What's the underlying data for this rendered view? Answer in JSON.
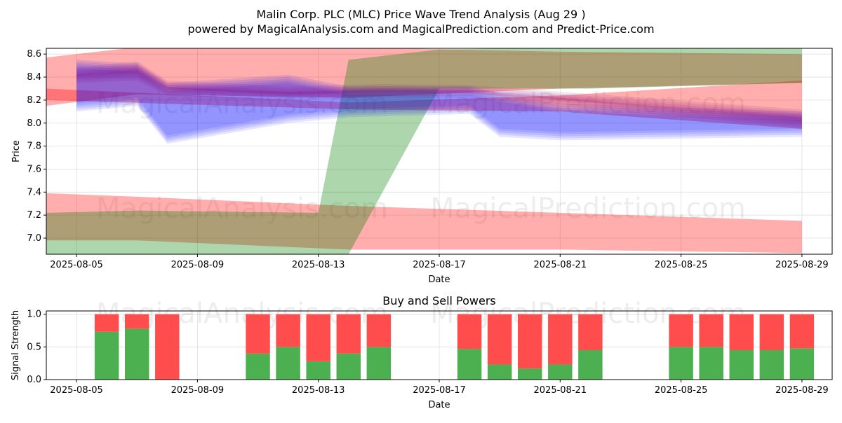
{
  "header": {
    "title": "Malin Corp. PLC (MLC) Price Wave Trend Analysis (Aug 29 )",
    "subtitle": "powered by MagicalAnalysis.com and MagicalPrediction.com and Predict-Price.com"
  },
  "watermarks": [
    "MagicalAnalysis.com",
    "MagicalPrediction.com"
  ],
  "colors": {
    "red_band": "#ff0000",
    "green_band": "#008000",
    "blue_band": "#0000ff",
    "purple_band": "#800080",
    "buy_bar": "#4caf50",
    "sell_bar": "#ff4c4c"
  },
  "chart_data": [
    {
      "type": "area",
      "title": "",
      "xlabel": "Date",
      "ylabel": "Price",
      "x_range": [
        "2025-08-04",
        "2025-08-30"
      ],
      "ylim": [
        6.86,
        8.65
      ],
      "y_ticks": [
        7.0,
        7.2,
        7.4,
        7.6,
        7.8,
        8.0,
        8.2,
        8.4,
        8.6
      ],
      "x_tick_labels": [
        "2025-08-05",
        "2025-08-09",
        "2025-08-13",
        "2025-08-17",
        "2025-08-21",
        "2025-08-25",
        "2025-08-29"
      ],
      "grid": true,
      "bands": [
        {
          "color": "red",
          "x": [
            "2025-08-04",
            "2025-08-07",
            "2025-08-14",
            "2025-08-21",
            "2025-08-29"
          ],
          "upper": [
            8.57,
            8.66,
            8.66,
            8.62,
            8.6
          ],
          "lower": [
            8.15,
            8.25,
            8.22,
            8.3,
            8.35
          ]
        },
        {
          "color": "red",
          "x": [
            "2025-08-29",
            "2025-08-21",
            "2025-08-14",
            "2025-08-04"
          ],
          "upper": [
            8.37,
            8.24,
            8.18,
            8.3
          ],
          "lower": [
            7.95,
            8.1,
            8.12,
            8.2
          ]
        },
        {
          "color": "red",
          "x": [
            "2025-08-04",
            "2025-08-07",
            "2025-08-14",
            "2025-08-21",
            "2025-08-29"
          ],
          "upper": [
            7.39,
            7.36,
            7.28,
            7.22,
            7.15
          ],
          "lower": [
            6.98,
            6.98,
            6.9,
            6.9,
            6.87
          ]
        },
        {
          "color": "green",
          "x": [
            "2025-08-04",
            "2025-08-07",
            "2025-08-13",
            "2025-08-14",
            "2025-08-17",
            "2025-08-22",
            "2025-08-29"
          ],
          "upper": [
            7.22,
            7.24,
            7.22,
            8.55,
            8.64,
            8.66,
            8.66
          ],
          "lower": [
            6.86,
            6.86,
            6.86,
            6.86,
            8.3,
            8.3,
            8.35
          ]
        },
        {
          "color": "blue",
          "x": [
            "2025-08-05",
            "2025-08-07",
            "2025-08-08",
            "2025-08-12",
            "2025-08-14",
            "2025-08-18",
            "2025-08-19",
            "2025-08-21",
            "2025-08-29"
          ],
          "upper": [
            8.55,
            8.52,
            8.35,
            8.42,
            8.32,
            8.32,
            8.26,
            8.17,
            8.1
          ],
          "lower": [
            8.1,
            8.15,
            7.82,
            8.0,
            8.05,
            8.08,
            7.88,
            7.85,
            7.88
          ]
        },
        {
          "color": "purple",
          "x": [
            "2025-08-05",
            "2025-08-07",
            "2025-08-08",
            "2025-08-12",
            "2025-08-15",
            "2025-08-18",
            "2025-08-29"
          ],
          "upper": [
            8.48,
            8.54,
            8.37,
            8.32,
            8.34,
            8.33,
            8.12
          ],
          "lower": [
            8.35,
            8.37,
            8.24,
            8.2,
            8.22,
            8.22,
            7.96
          ]
        }
      ]
    },
    {
      "type": "bar",
      "title": "Buy and Sell Powers",
      "xlabel": "Date",
      "ylabel": "Signal Strength",
      "ylim": [
        0,
        1.05
      ],
      "y_ticks": [
        0.0,
        0.5,
        1.0
      ],
      "x_tick_labels": [
        "2025-08-05",
        "2025-08-09",
        "2025-08-13",
        "2025-08-17",
        "2025-08-21",
        "2025-08-25",
        "2025-08-29"
      ],
      "categories": [
        "2025-08-06",
        "2025-08-07",
        "2025-08-08",
        "2025-08-11",
        "2025-08-12",
        "2025-08-13",
        "2025-08-14",
        "2025-08-15",
        "2025-08-18",
        "2025-08-19",
        "2025-08-20",
        "2025-08-21",
        "2025-08-22",
        "2025-08-25",
        "2025-08-26",
        "2025-08-27",
        "2025-08-28",
        "2025-08-29"
      ],
      "series": [
        {
          "name": "Buy",
          "values": [
            0.73,
            0.78,
            0.0,
            0.4,
            0.5,
            0.28,
            0.4,
            0.5,
            0.47,
            0.23,
            0.17,
            0.23,
            0.45,
            0.5,
            0.5,
            0.45,
            0.45,
            0.48
          ]
        },
        {
          "name": "Sell",
          "values": [
            0.27,
            0.22,
            1.0,
            0.6,
            0.5,
            0.72,
            0.6,
            0.5,
            0.53,
            0.77,
            0.83,
            0.77,
            0.55,
            0.5,
            0.5,
            0.55,
            0.55,
            0.52
          ]
        }
      ]
    }
  ]
}
